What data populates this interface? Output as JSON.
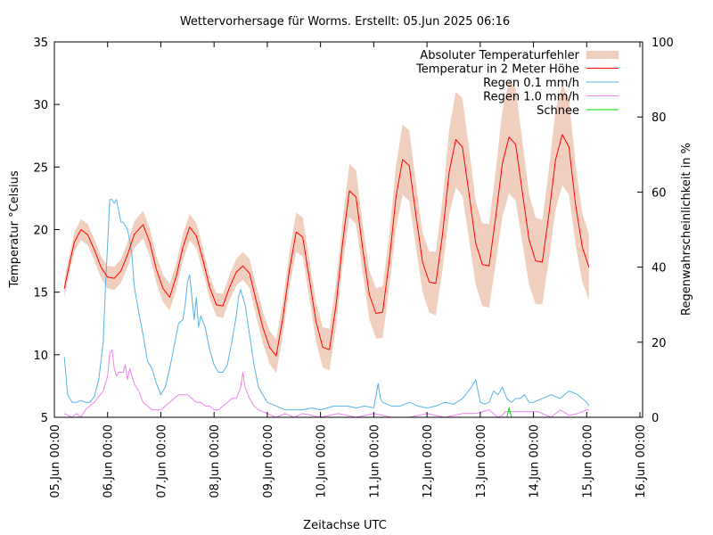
{
  "chart_data": {
    "type": "line",
    "title": "Wettervorhersage für Worms. Erstellt: 05.Jun 2025 06:16",
    "xlabel": "Zeitachse UTC",
    "ylabel": "Temperatur °Celsius",
    "y2label": "Regenwahrscheinlichkeit in %",
    "x_unit": "hours since 05.Jun 00:00 UTC",
    "xlim": [
      0,
      264
    ],
    "ylim": [
      5,
      35
    ],
    "y2lim": [
      0,
      100
    ],
    "grid": false,
    "legend_position": "top-right",
    "x_ticks": [
      {
        "value": 0,
        "label": "05.Jun 00:00"
      },
      {
        "value": 24,
        "label": "06.Jun 00:00"
      },
      {
        "value": 48,
        "label": "07.Jun 00:00"
      },
      {
        "value": 72,
        "label": "08.Jun 00:00"
      },
      {
        "value": 96,
        "label": "09.Jun 00:00"
      },
      {
        "value": 120,
        "label": "10.Jun 00:00"
      },
      {
        "value": 144,
        "label": "11.Jun 00:00"
      },
      {
        "value": 168,
        "label": "12.Jun 00:00"
      },
      {
        "value": 192,
        "label": "13.Jun 00:00"
      },
      {
        "value": 216,
        "label": "14.Jun 00:00"
      },
      {
        "value": 240,
        "label": "15.Jun 00:00"
      },
      {
        "value": 264,
        "label": "16.Jun 00:00"
      }
    ],
    "y_ticks": [
      {
        "value": 5,
        "label": "5"
      },
      {
        "value": 10,
        "label": "10"
      },
      {
        "value": 15,
        "label": "15"
      },
      {
        "value": 20,
        "label": "20"
      },
      {
        "value": 25,
        "label": "25"
      },
      {
        "value": 30,
        "label": "30"
      },
      {
        "value": 35,
        "label": "35"
      }
    ],
    "y2_ticks": [
      {
        "value": 0,
        "label": "0"
      },
      {
        "value": 20,
        "label": "20"
      },
      {
        "value": 40,
        "label": "40"
      },
      {
        "value": 60,
        "label": "60"
      },
      {
        "value": 80,
        "label": "80"
      },
      {
        "value": 100,
        "label": "100"
      }
    ],
    "legend": [
      {
        "key": "error",
        "label": "Absoluter Temperaturfehler",
        "color": "#f0cfbf",
        "kind": "band"
      },
      {
        "key": "temp",
        "label": "Temperatur in 2 Meter Höhe",
        "color": "#ff0000",
        "kind": "line"
      },
      {
        "key": "rain01",
        "label": "Regen 0.1 mm/h",
        "color": "#56b4e9",
        "kind": "line"
      },
      {
        "key": "rain10",
        "label": "Regen 1.0 mm/h",
        "color": "#ee82ee",
        "kind": "line"
      },
      {
        "key": "snow",
        "label": "Schnee",
        "color": "#00dd00",
        "kind": "line"
      }
    ],
    "series": [
      {
        "name": "Temperatur in 2 Meter Höhe",
        "axis": "y",
        "x": [
          4.5,
          7,
          9,
          12,
          15,
          18,
          21,
          24,
          27,
          30,
          33,
          36,
          40,
          43,
          46,
          49,
          52,
          55,
          58,
          61,
          64,
          67,
          70,
          73,
          76,
          79,
          82,
          85,
          88,
          91,
          94,
          97,
          100,
          103,
          106,
          109,
          112,
          115,
          118,
          121,
          124,
          127,
          130,
          133,
          136,
          139,
          142,
          145,
          148,
          151,
          154,
          157,
          160,
          163,
          166,
          169,
          172,
          175,
          178,
          181,
          184,
          187,
          190,
          193,
          196,
          199,
          202,
          205,
          208,
          211,
          214,
          217,
          220,
          223,
          226,
          229,
          232,
          235,
          238,
          241
        ],
        "values": [
          15.3,
          17.4,
          19.0,
          20.0,
          19.6,
          18.4,
          17.0,
          16.2,
          16.1,
          16.7,
          18.0,
          19.6,
          20.4,
          19.0,
          16.8,
          15.3,
          14.6,
          16.3,
          18.6,
          20.2,
          19.5,
          17.6,
          15.4,
          14.0,
          13.9,
          15.4,
          16.6,
          17.1,
          16.5,
          14.3,
          12.2,
          10.6,
          9.9,
          12.9,
          16.8,
          19.8,
          19.4,
          16.0,
          12.6,
          10.6,
          10.4,
          14.0,
          19.0,
          23.1,
          22.6,
          18.5,
          14.8,
          13.3,
          13.4,
          17.5,
          22.6,
          25.6,
          25.1,
          21.2,
          17.4,
          15.8,
          15.7,
          19.6,
          24.6,
          27.2,
          26.6,
          22.8,
          18.9,
          17.2,
          17.1,
          21.0,
          25.3,
          27.4,
          26.8,
          23.0,
          19.2,
          17.5,
          17.4,
          21.3,
          25.6,
          27.6,
          26.6,
          22.0,
          18.6,
          17.0
        ]
      },
      {
        "name": "Absoluter Temperaturfehler",
        "axis": "y",
        "note": "half-width of band around temperature, °C",
        "x": [
          4.5,
          24,
          48,
          72,
          96,
          120,
          144,
          168,
          192,
          216,
          241
        ],
        "values": [
          0.7,
          0.9,
          1.1,
          0.9,
          1.3,
          1.6,
          2.0,
          2.4,
          3.3,
          3.5,
          2.6
        ]
      },
      {
        "name": "Regen 0.1 mm/h",
        "axis": "y2",
        "x": [
          4.5,
          6,
          8,
          10,
          12,
          14,
          16,
          18,
          20,
          22,
          23,
          24,
          25,
          26,
          27,
          28,
          29,
          30,
          31,
          32,
          33,
          34,
          35,
          36,
          38,
          40,
          42,
          44,
          46,
          48,
          50,
          52,
          54,
          56,
          58,
          59,
          60,
          61,
          62,
          63,
          64,
          65,
          66,
          68,
          70,
          72,
          74,
          76,
          78,
          80,
          82,
          83,
          84,
          85,
          86,
          88,
          90,
          92,
          94,
          96,
          100,
          104,
          108,
          112,
          116,
          120,
          126,
          132,
          136,
          140,
          144,
          146,
          147,
          148,
          152,
          156,
          160,
          164,
          168,
          172,
          176,
          180,
          184,
          188,
          190,
          191,
          192,
          194,
          196,
          198,
          200,
          202,
          204,
          206,
          208,
          210,
          212,
          214,
          216,
          220,
          224,
          228,
          230,
          232,
          236,
          240,
          241
        ],
        "values": [
          16,
          6,
          4,
          4,
          4.5,
          4,
          4,
          5.5,
          10,
          20,
          34,
          46,
          58,
          58,
          57,
          58,
          55,
          52,
          52,
          51,
          50,
          47,
          43,
          35,
          28,
          22,
          15,
          13,
          9,
          6,
          8,
          13,
          19,
          25,
          26,
          30,
          36,
          38,
          32,
          26,
          32,
          24,
          27,
          24,
          18,
          14,
          12,
          12,
          14,
          20,
          27,
          32,
          34,
          32,
          30,
          22,
          14,
          8,
          6,
          4,
          3,
          2,
          2,
          2,
          2.5,
          2,
          3,
          3,
          2.5,
          3,
          2.5,
          9,
          5,
          4,
          3,
          3,
          4,
          3,
          2.5,
          3,
          4,
          3.5,
          5,
          8,
          10,
          7,
          4,
          3.5,
          4,
          7,
          6,
          8,
          5,
          4,
          5,
          5,
          6,
          4,
          4,
          5,
          6,
          5,
          6,
          7,
          6,
          4,
          3
        ]
      },
      {
        "name": "Regen 1.0 mm/h",
        "axis": "y2",
        "x": [
          4.5,
          8,
          10,
          12,
          14,
          16,
          18,
          20,
          22,
          24,
          25,
          26,
          27,
          28,
          29,
          30,
          31,
          32,
          33,
          34,
          35,
          36,
          38,
          40,
          42,
          44,
          46,
          48,
          50,
          52,
          54,
          56,
          58,
          60,
          62,
          64,
          66,
          68,
          70,
          72,
          74,
          76,
          78,
          80,
          82,
          84,
          85,
          86,
          88,
          90,
          92,
          96,
          100,
          104,
          108,
          112,
          120,
          128,
          136,
          144,
          152,
          160,
          168,
          176,
          184,
          190,
          196,
          200,
          202,
          203,
          206,
          212,
          218,
          224,
          228,
          232,
          236,
          240,
          241
        ],
        "values": [
          1,
          0,
          1,
          0,
          2,
          3,
          4,
          5.5,
          7,
          11,
          17,
          18,
          13,
          11,
          12,
          12,
          12,
          14,
          10,
          13,
          11,
          9,
          7,
          4,
          3,
          2,
          2,
          2,
          3,
          4,
          5,
          6,
          6,
          6,
          5,
          4,
          4,
          3,
          3,
          2,
          2,
          3,
          4,
          5,
          5,
          8,
          12,
          8,
          5,
          3,
          2,
          1,
          0,
          1,
          0,
          1,
          0,
          1,
          0,
          1,
          0,
          0,
          1,
          0,
          1,
          1,
          2,
          0,
          0.5,
          1.5,
          1.5,
          1.5,
          1.5,
          0,
          2,
          0.5,
          1,
          2,
          2
        ]
      },
      {
        "name": "Schnee",
        "axis": "y2",
        "x": [
          204,
          205,
          206
        ],
        "values": [
          0,
          2.5,
          0
        ]
      }
    ]
  }
}
